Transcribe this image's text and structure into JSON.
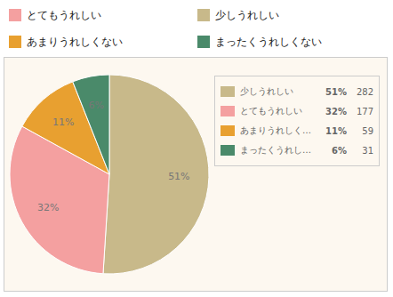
{
  "chart_data": {
    "type": "pie",
    "categories": [
      "少しうれしい",
      "とてもうれしい",
      "あまりうれしくない",
      "まったくうれしくない"
    ],
    "values": [
      51,
      32,
      11,
      6
    ],
    "value_labels": [
      "51%",
      "32%",
      "11%",
      "6%"
    ],
    "colors": [
      "#c8b98a",
      "#f4a0a0",
      "#e8a030",
      "#4a8a6a"
    ],
    "counts": [
      282,
      177,
      59,
      31
    ],
    "short_labels": [
      "少しうれしい",
      "とてもうれしい",
      "あまりうれしく…",
      "まったくうれし…"
    ],
    "legend_entries": [
      {
        "label": "とてもうれしい",
        "color": "#f4a0a0"
      },
      {
        "label": "少しうれしい",
        "color": "#c8b98a"
      },
      {
        "label": "あまりうれしくない",
        "color": "#e8a030"
      },
      {
        "label": "まったくうれしくない",
        "color": "#4a8a6a"
      }
    ],
    "data_labels": true
  }
}
